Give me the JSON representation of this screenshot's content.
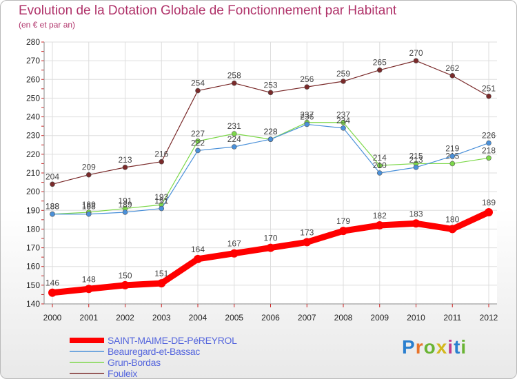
{
  "header": {
    "title": "Evolution de la Dotation Globale de Fonctionnement par Habitant",
    "subtitle": "(en € et par an)"
  },
  "logo": {
    "text": "Proxiti",
    "colors": [
      "#2a7fcf",
      "#e8732a",
      "#6ab434",
      "#d4b81e",
      "#c23b8c",
      "#2a7fcf",
      "#6ab434"
    ]
  },
  "chart_data": {
    "type": "line",
    "title": "Evolution de la Dotation Globale de Fonctionnement par Habitant",
    "subtitle": "(en € et par an)",
    "xlabel": "",
    "ylabel": "",
    "x": [
      2000,
      2001,
      2002,
      2003,
      2004,
      2005,
      2006,
      2007,
      2008,
      2009,
      2010,
      2011,
      2012
    ],
    "ylim": [
      140,
      280
    ],
    "yticks": [
      140,
      150,
      160,
      170,
      180,
      190,
      200,
      210,
      220,
      230,
      240,
      250,
      260,
      270,
      280
    ],
    "grid": true,
    "legend_position": "bottom-left",
    "series": [
      {
        "name": "SAINT-MAIME-DE-PéREYROL",
        "color": "#ff0000",
        "values": [
          146,
          148,
          150,
          151,
          164,
          167,
          170,
          173,
          179,
          182,
          183,
          180,
          189
        ]
      },
      {
        "name": "Beauregard-et-Bassac",
        "color": "#4a90d9",
        "values": [
          188,
          188,
          189,
          191,
          222,
          224,
          228,
          236,
          234,
          210,
          213,
          219,
          226
        ]
      },
      {
        "name": "Grun-Bordas",
        "color": "#7dd84a",
        "values": [
          188,
          189,
          191,
          193,
          227,
          231,
          228,
          237,
          237,
          214,
          215,
          215,
          218
        ]
      },
      {
        "name": "Fouleix",
        "color": "#7a2a2a",
        "values": [
          204,
          209,
          213,
          216,
          254,
          258,
          253,
          256,
          259,
          265,
          270,
          262,
          251
        ]
      }
    ]
  }
}
